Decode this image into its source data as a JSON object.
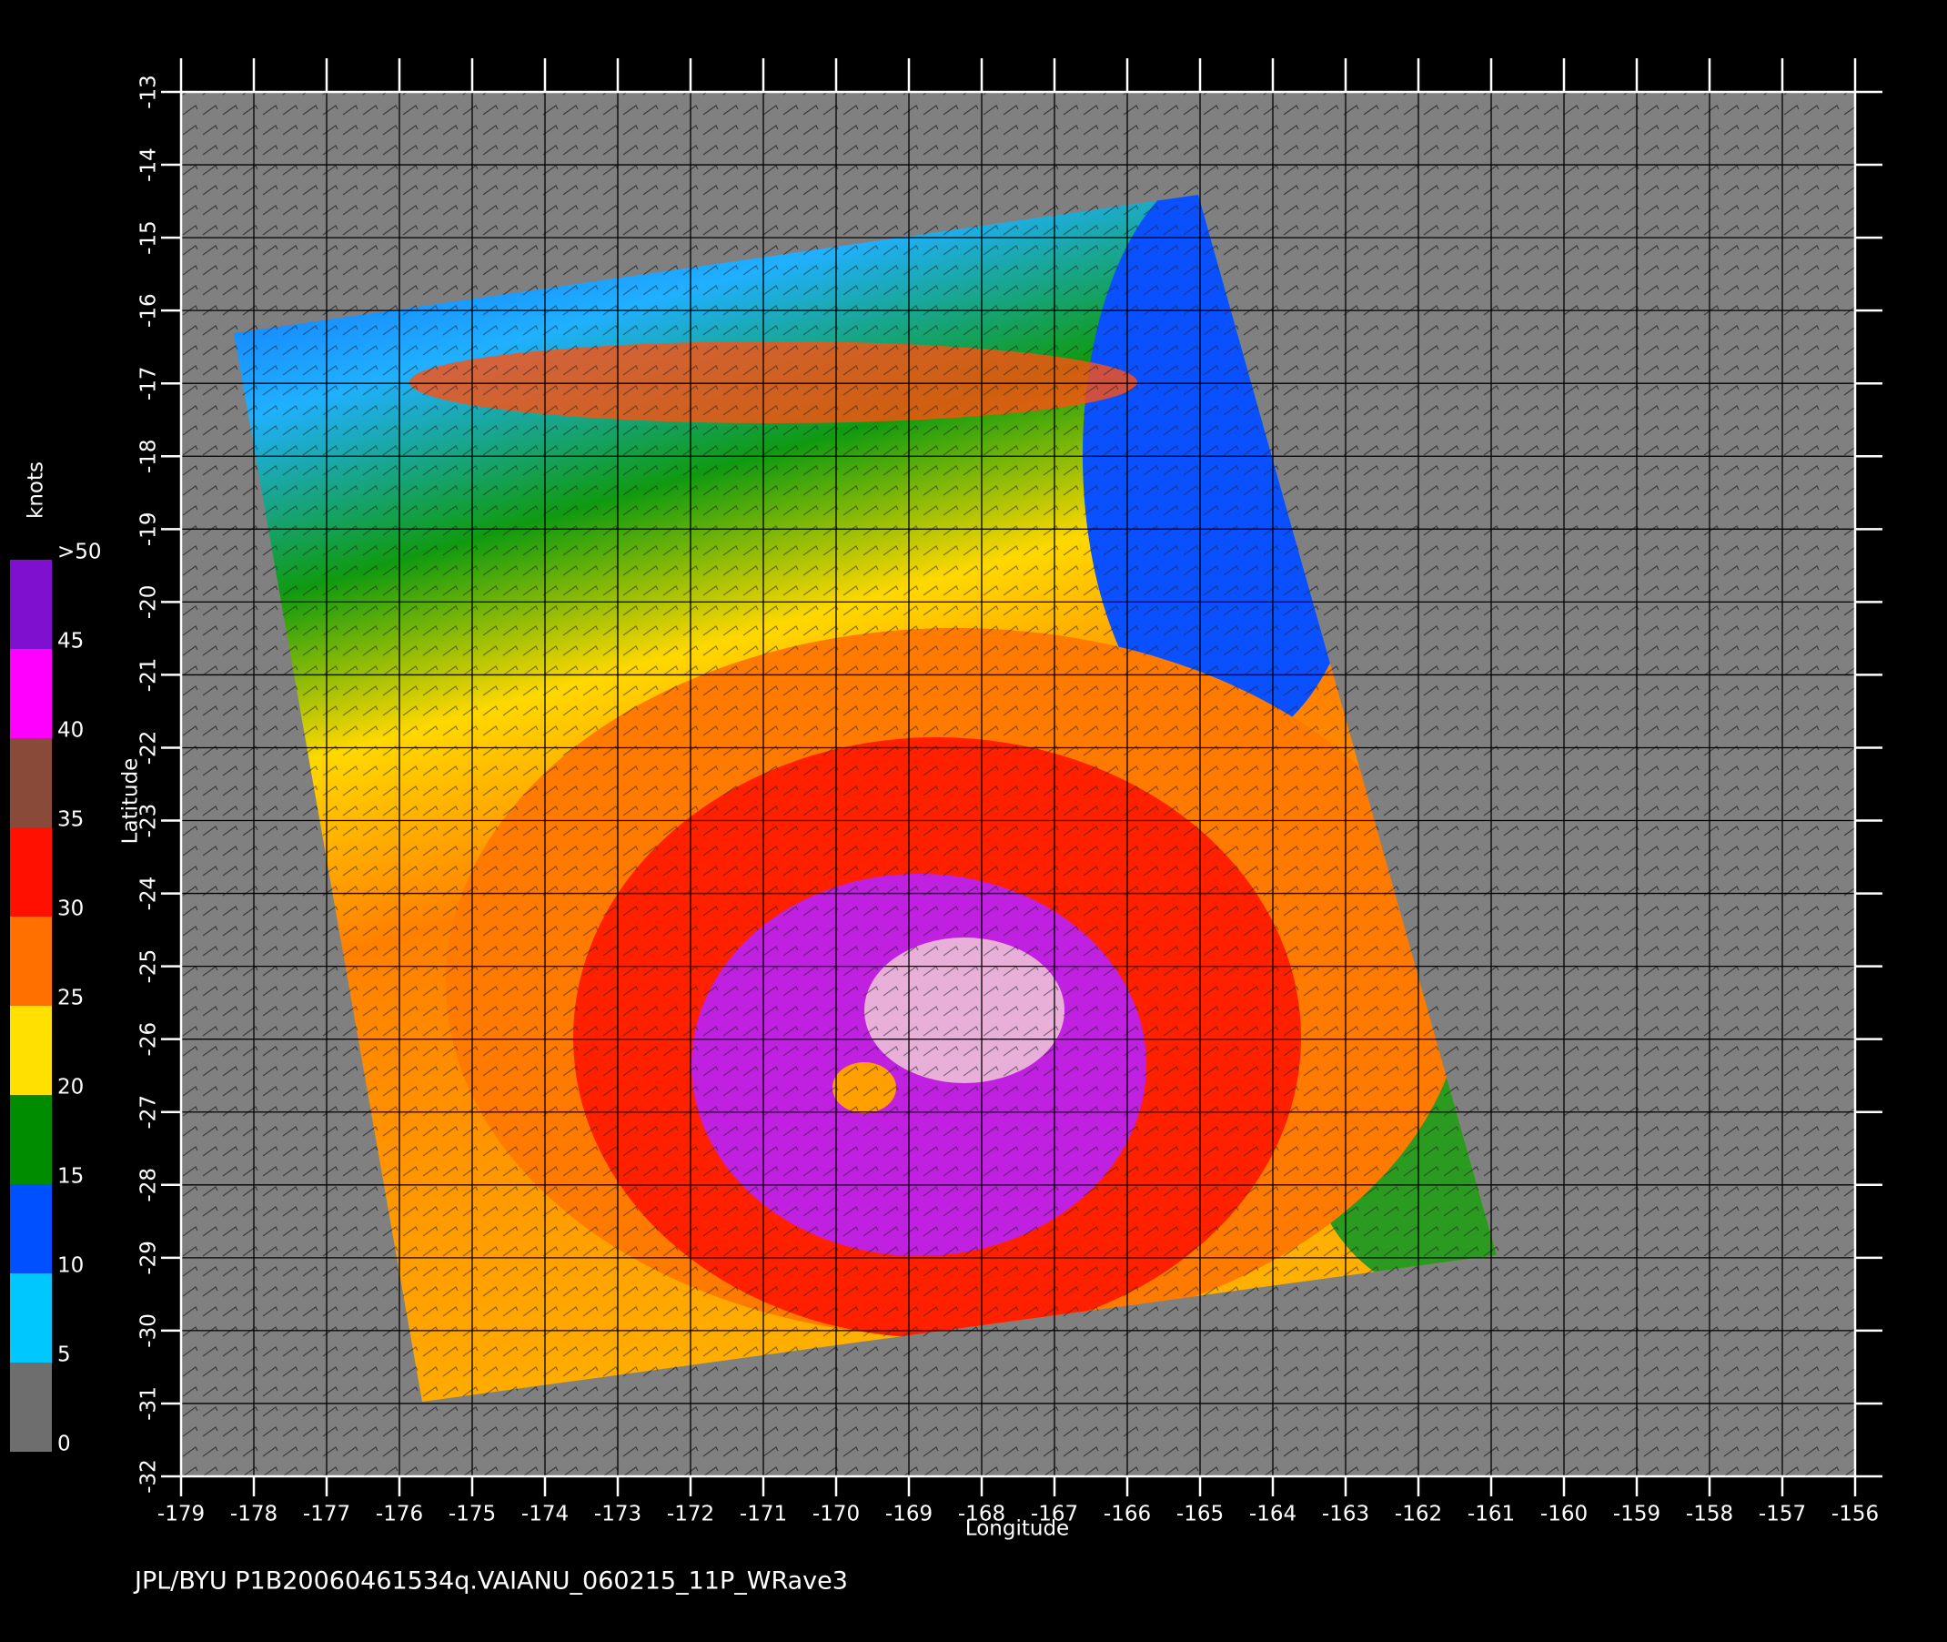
{
  "chart_data": {
    "type": "map",
    "footer": "JPL/BYU  P1B20060461534q.VAIANU_060215_11P_WRave3",
    "xlabel": "Longitude",
    "ylabel": "Latitude",
    "xlim": [
      -179,
      -156
    ],
    "ylim": [
      -32,
      -13
    ],
    "xticks": [
      -179,
      -178,
      -177,
      -176,
      -175,
      -174,
      -173,
      -172,
      -171,
      -170,
      -169,
      -168,
      -167,
      -166,
      -165,
      -164,
      -163,
      -162,
      -161,
      -160,
      -159,
      -158,
      -157,
      -156
    ],
    "yticks": [
      -32,
      -31,
      -30,
      -29,
      -28,
      -27,
      -26,
      -25,
      -24,
      -23,
      -22,
      -21,
      -20,
      -19,
      -18,
      -17,
      -16,
      -15,
      -14,
      -13
    ],
    "grid": true,
    "colorbar": {
      "label": "knots",
      "lim": [
        0,
        50
      ],
      "ticks": [
        0,
        5,
        10,
        15,
        20,
        25,
        30,
        35,
        40,
        45,
        {
          "value": 50,
          "label": ">50"
        }
      ],
      "colors": [
        "#6e6e6e",
        "#00c8ff",
        "#0050ff",
        "#008c00",
        "#ffe000",
        "#ff7000",
        "#ff1000",
        "#8a4a3a",
        "#ff00ff",
        "#8010d0"
      ]
    }
  }
}
